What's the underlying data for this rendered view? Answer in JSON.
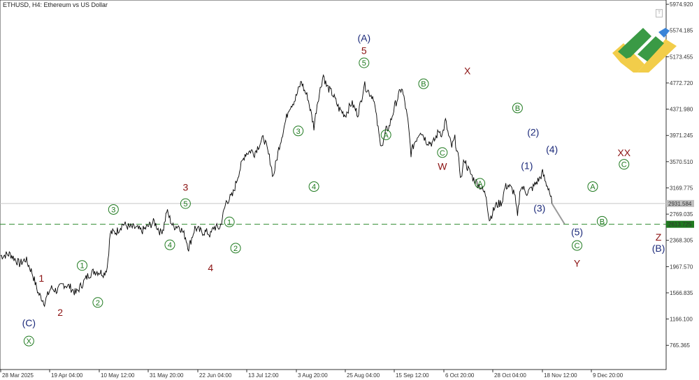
{
  "header": {
    "title": "ETHUSD, H4:  Ethereum vs US Dollar"
  },
  "chart_data": {
    "type": "line",
    "symbol": "ETHUSD",
    "timeframe": "H4",
    "y_ticks": [
      "5974.920",
      "5574.185",
      "5173.455",
      "4772.720",
      "4371.980",
      "3971.245",
      "3570.510",
      "3169.775",
      "2769.035",
      "2368.305",
      "1967.570",
      "1566.835",
      "1166.100",
      "765.365"
    ],
    "y_tick_values": [
      5974.92,
      5574.185,
      5173.455,
      4772.72,
      4371.98,
      3971.245,
      3570.51,
      3169.775,
      2769.035,
      2368.305,
      1967.57,
      1566.835,
      1166.1,
      765.365
    ],
    "ylim": [
      395,
      6040
    ],
    "x_ticks": [
      "28 Mar 2025",
      "19 Apr 04:00",
      "10 May 12:00",
      "31 May 20:00",
      "22 Jun 04:00",
      "13 Jul 12:00",
      "3 Aug 20:00",
      "25 Aug 04:00",
      "15 Sep 12:00",
      "6 Oct 20:00",
      "28 Oct 04:00",
      "18 Nov 12:00",
      "9 Dec 20:00"
    ],
    "current_price": {
      "label": "2931.584",
      "value": 2931.584
    },
    "support_level": {
      "label": "2613.725",
      "value": 2613.725
    },
    "price_path": [
      [
        0,
        2130
      ],
      [
        3,
        2160
      ],
      [
        6,
        2010
      ],
      [
        8,
        2080
      ],
      [
        10,
        1880
      ],
      [
        12,
        1560
      ],
      [
        14,
        1420
      ],
      [
        16,
        1640
      ],
      [
        18,
        1600
      ],
      [
        20,
        1700
      ],
      [
        22,
        1660
      ],
      [
        24,
        1560
      ],
      [
        26,
        1700
      ],
      [
        28,
        1840
      ],
      [
        30,
        1900
      ],
      [
        32,
        1880
      ],
      [
        33,
        1860
      ],
      [
        34,
        1960
      ],
      [
        35,
        2480
      ],
      [
        37,
        2500
      ],
      [
        39,
        2620
      ],
      [
        41,
        2570
      ],
      [
        43,
        2560
      ],
      [
        45,
        2510
      ],
      [
        47,
        2580
      ],
      [
        49,
        2650
      ],
      [
        51,
        2490
      ],
      [
        52,
        2560
      ],
      [
        53,
        2820
      ],
      [
        55,
        2580
      ],
      [
        57,
        2590
      ],
      [
        59,
        2420
      ],
      [
        60,
        2250
      ],
      [
        62,
        2560
      ],
      [
        64,
        2500
      ],
      [
        66,
        2490
      ],
      [
        67,
        2450
      ],
      [
        68,
        2570
      ],
      [
        70,
        2560
      ],
      [
        72,
        2960
      ],
      [
        74,
        3050
      ],
      [
        76,
        3400
      ],
      [
        78,
        3690
      ],
      [
        80,
        3740
      ],
      [
        81,
        3700
      ],
      [
        82,
        3790
      ],
      [
        84,
        3940
      ],
      [
        86,
        3590
      ],
      [
        87,
        3340
      ],
      [
        89,
        3820
      ],
      [
        91,
        4200
      ],
      [
        92,
        4390
      ],
      [
        94,
        4520
      ],
      [
        96,
        4800
      ],
      [
        97,
        4650
      ],
      [
        98,
        4560
      ],
      [
        100,
        4100
      ],
      [
        101,
        4450
      ],
      [
        103,
        4900
      ],
      [
        104,
        4730
      ],
      [
        106,
        4600
      ],
      [
        108,
        4380
      ],
      [
        110,
        4280
      ],
      [
        112,
        4470
      ],
      [
        114,
        4300
      ],
      [
        115,
        4480
      ],
      [
        116,
        4750
      ],
      [
        118,
        4600
      ],
      [
        119,
        4560
      ],
      [
        120,
        4230
      ],
      [
        121,
        3900
      ],
      [
        122,
        3820
      ],
      [
        123,
        4050
      ],
      [
        124,
        4100
      ],
      [
        126,
        4450
      ],
      [
        128,
        4700
      ],
      [
        129,
        4480
      ],
      [
        130,
        4180
      ],
      [
        131,
        3700
      ],
      [
        132,
        3850
      ],
      [
        134,
        4050
      ],
      [
        136,
        3880
      ],
      [
        138,
        3850
      ],
      [
        140,
        4050
      ],
      [
        141,
        3980
      ],
      [
        142,
        4200
      ],
      [
        143,
        3960
      ],
      [
        144,
        3800
      ],
      [
        145,
        3920
      ],
      [
        146,
        3650
      ],
      [
        147,
        3300
      ],
      [
        148,
        3620
      ],
      [
        149,
        3480
      ],
      [
        151,
        3300
      ],
      [
        153,
        3200
      ],
      [
        155,
        3050
      ],
      [
        156,
        2680
      ],
      [
        158,
        2900
      ],
      [
        160,
        2950
      ],
      [
        161,
        3180
      ],
      [
        162,
        3210
      ],
      [
        164,
        3100
      ],
      [
        165,
        2720
      ],
      [
        166,
        3200
      ],
      [
        168,
        3100
      ],
      [
        170,
        3180
      ],
      [
        171,
        3250
      ],
      [
        172,
        3310
      ],
      [
        173,
        3400
      ],
      [
        174,
        3250
      ],
      [
        175,
        3160
      ],
      [
        176,
        2930
      ]
    ],
    "projection_path": [
      [
        176,
        2930
      ],
      [
        180,
        2620
      ]
    ],
    "waves": [
      {
        "text": "1",
        "style": "dark-red",
        "x": 13,
        "y": 1790
      },
      {
        "text": "2",
        "style": "dark-red",
        "x": 19,
        "y": 1270
      },
      {
        "text": "(C)",
        "style": "navy",
        "x": 9,
        "y": 1110
      },
      {
        "text": "X",
        "style": "green-circle",
        "x": 9,
        "y": 830
      },
      {
        "text": "1",
        "style": "green-circle",
        "x": 26,
        "y": 1985
      },
      {
        "text": "2",
        "style": "green-circle",
        "x": 31,
        "y": 1420
      },
      {
        "text": "3",
        "style": "green-circle",
        "x": 36,
        "y": 2840
      },
      {
        "text": "4",
        "style": "green-circle",
        "x": 54,
        "y": 2300
      },
      {
        "text": "5",
        "style": "green-circle",
        "x": 59,
        "y": 2930
      },
      {
        "text": "3",
        "style": "dark-red",
        "x": 59,
        "y": 3180
      },
      {
        "text": "4",
        "style": "dark-red",
        "x": 67,
        "y": 1950
      },
      {
        "text": "1",
        "style": "green-circle",
        "x": 73,
        "y": 2650
      },
      {
        "text": "2",
        "style": "green-circle",
        "x": 75,
        "y": 2250
      },
      {
        "text": "3",
        "style": "green-circle",
        "x": 95,
        "y": 4040
      },
      {
        "text": "4",
        "style": "green-circle",
        "x": 100,
        "y": 3190
      },
      {
        "text": "5",
        "style": "green-circle",
        "x": 116,
        "y": 5080
      },
      {
        "text": "5",
        "style": "dark-red",
        "x": 116,
        "y": 5270
      },
      {
        "text": "(A)",
        "style": "navy",
        "x": 116,
        "y": 5460
      },
      {
        "text": "A",
        "style": "green-circle",
        "x": 123,
        "y": 3980
      },
      {
        "text": "B",
        "style": "green-circle",
        "x": 135,
        "y": 4760
      },
      {
        "text": "C",
        "style": "green-circle",
        "x": 141,
        "y": 3710
      },
      {
        "text": "W",
        "style": "dark-red",
        "x": 141,
        "y": 3500
      },
      {
        "text": "X",
        "style": "dark-red",
        "x": 149,
        "y": 4960
      },
      {
        "text": "A",
        "style": "green-circle",
        "x": 153,
        "y": 3240
      },
      {
        "text": "B",
        "style": "green-circle",
        "x": 165,
        "y": 4390
      },
      {
        "text": "(2)",
        "style": "navy",
        "x": 170,
        "y": 4020
      },
      {
        "text": "(1)",
        "style": "navy",
        "x": 168,
        "y": 3510
      },
      {
        "text": "(4)",
        "style": "navy",
        "x": 176,
        "y": 3760
      },
      {
        "text": "(3)",
        "style": "navy",
        "x": 172,
        "y": 2860
      },
      {
        "text": "A",
        "style": "green-circle",
        "x": 189,
        "y": 3190
      },
      {
        "text": "B",
        "style": "green-circle",
        "x": 192,
        "y": 2660
      },
      {
        "text": "(5)",
        "style": "navy",
        "x": 184,
        "y": 2500
      },
      {
        "text": "C",
        "style": "green-circle",
        "x": 184,
        "y": 2290
      },
      {
        "text": "Y",
        "style": "dark-red",
        "x": 184,
        "y": 2020
      },
      {
        "text": "XX",
        "style": "dark-red",
        "x": 199,
        "y": 3710
      },
      {
        "text": "C",
        "style": "green-circle",
        "x": 199,
        "y": 3530
      },
      {
        "text": "Z",
        "style": "dark-red",
        "x": 210,
        "y": 2420
      },
      {
        "text": "(B)",
        "style": "navy",
        "x": 210,
        "y": 2250
      }
    ]
  }
}
